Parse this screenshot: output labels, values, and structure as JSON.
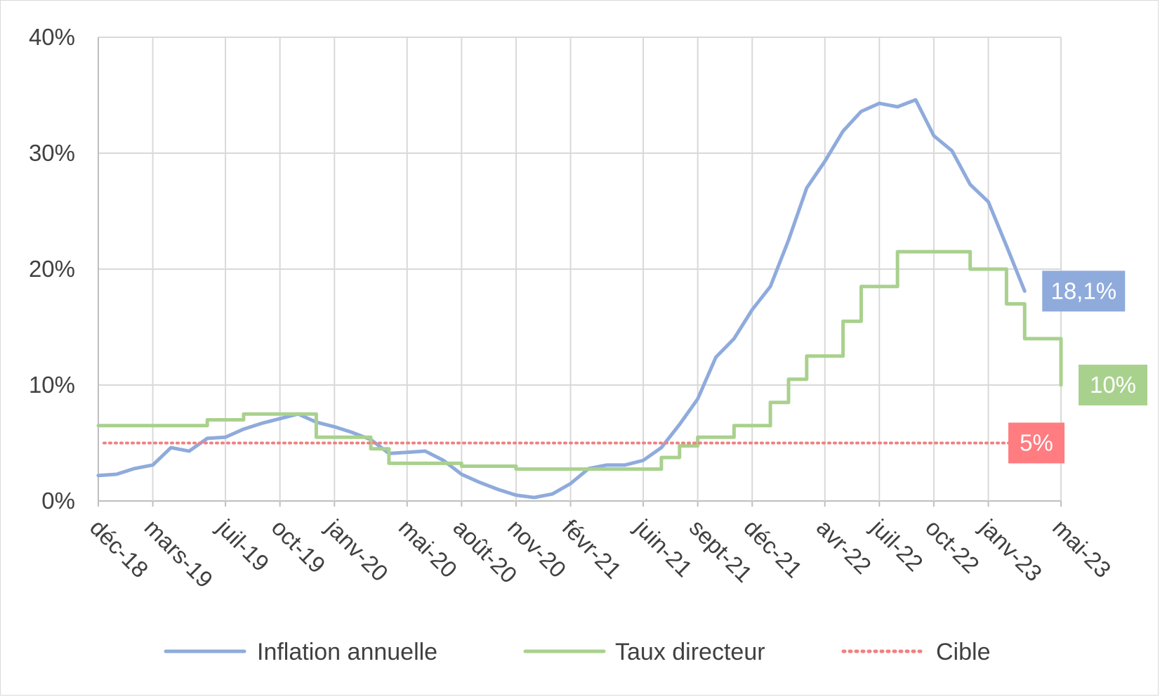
{
  "chart_data": {
    "type": "line",
    "x": [
      "déc-18",
      "janv-19",
      "févr-19",
      "mars-19",
      "avr-19",
      "mai-19",
      "juin-19",
      "juil-19",
      "août-19",
      "sept-19",
      "oct-19",
      "nov-19",
      "déc-19",
      "janv-20",
      "févr-20",
      "mars-20",
      "avr-20",
      "mai-20",
      "juin-20",
      "juil-20",
      "août-20",
      "sept-20",
      "oct-20",
      "nov-20",
      "déc-20",
      "janv-21",
      "févr-21",
      "mars-21",
      "avr-21",
      "mai-21",
      "juin-21",
      "juil-21",
      "août-21",
      "sept-21",
      "oct-21",
      "nov-21",
      "déc-21",
      "janv-22",
      "févr-22",
      "mars-22",
      "avr-22",
      "mai-22",
      "juin-22",
      "juil-22",
      "août-22",
      "sept-22",
      "oct-22",
      "nov-22",
      "déc-22",
      "janv-23",
      "févr-23",
      "mars-23",
      "avr-23",
      "mai-23"
    ],
    "x_tick_labels": [
      "déc-18",
      "mars-19",
      "juil-19",
      "oct-19",
      "janv-20",
      "mai-20",
      "août-20",
      "nov-20",
      "févr-21",
      "juin-21",
      "sept-21",
      "déc-21",
      "avr-22",
      "juil-22",
      "oct-22",
      "janv-23",
      "mai-23"
    ],
    "y_ticks": [
      "0%",
      "10%",
      "20%",
      "30%",
      "40%"
    ],
    "ylim": [
      0,
      40
    ],
    "grid": true,
    "legend_position": "bottom",
    "series": [
      {
        "name": "Inflation annuelle",
        "color": "#8fabdc",
        "style": "line",
        "values": [
          2.2,
          2.3,
          2.8,
          3.1,
          4.6,
          4.3,
          5.4,
          5.5,
          6.2,
          6.7,
          7.1,
          7.5,
          6.8,
          6.4,
          5.9,
          5.3,
          4.1,
          4.2,
          4.3,
          3.5,
          2.3,
          1.6,
          1.0,
          0.5,
          0.3,
          0.6,
          1.5,
          2.8,
          3.1,
          3.1,
          3.5,
          4.6,
          6.6,
          8.8,
          12.4,
          14.0,
          16.5,
          18.5,
          22.5,
          27.0,
          29.3,
          31.9,
          33.6,
          34.3,
          34.0,
          34.6,
          31.5,
          30.2,
          27.3,
          25.8,
          22.0,
          18.1,
          null,
          null
        ]
      },
      {
        "name": "Taux directeur",
        "color": "#a9d18e",
        "style": "step",
        "values": [
          6.5,
          6.5,
          6.5,
          6.5,
          6.5,
          6.5,
          7.0,
          7.0,
          7.5,
          7.5,
          7.5,
          7.5,
          5.5,
          5.5,
          5.5,
          4.5,
          3.25,
          3.25,
          3.25,
          3.25,
          3.0,
          3.0,
          3.0,
          2.75,
          2.75,
          2.75,
          2.75,
          2.75,
          2.75,
          2.75,
          2.75,
          3.75,
          4.75,
          5.5,
          5.5,
          6.5,
          6.5,
          8.5,
          10.5,
          12.5,
          12.5,
          15.5,
          18.5,
          18.5,
          21.5,
          21.5,
          21.5,
          21.5,
          20.0,
          20.0,
          17.0,
          14.0,
          14.0,
          10.0
        ]
      },
      {
        "name": "Cible",
        "color": "#f08080",
        "style": "dotted",
        "value": 5
      }
    ],
    "callouts": [
      {
        "text": "18,1%",
        "color": "#8fabdc",
        "series": "Inflation annuelle"
      },
      {
        "text": "10%",
        "color": "#a9d18e",
        "series": "Taux directeur"
      },
      {
        "text": "5%",
        "color": "#ff7c80",
        "series": "Cible"
      }
    ]
  }
}
